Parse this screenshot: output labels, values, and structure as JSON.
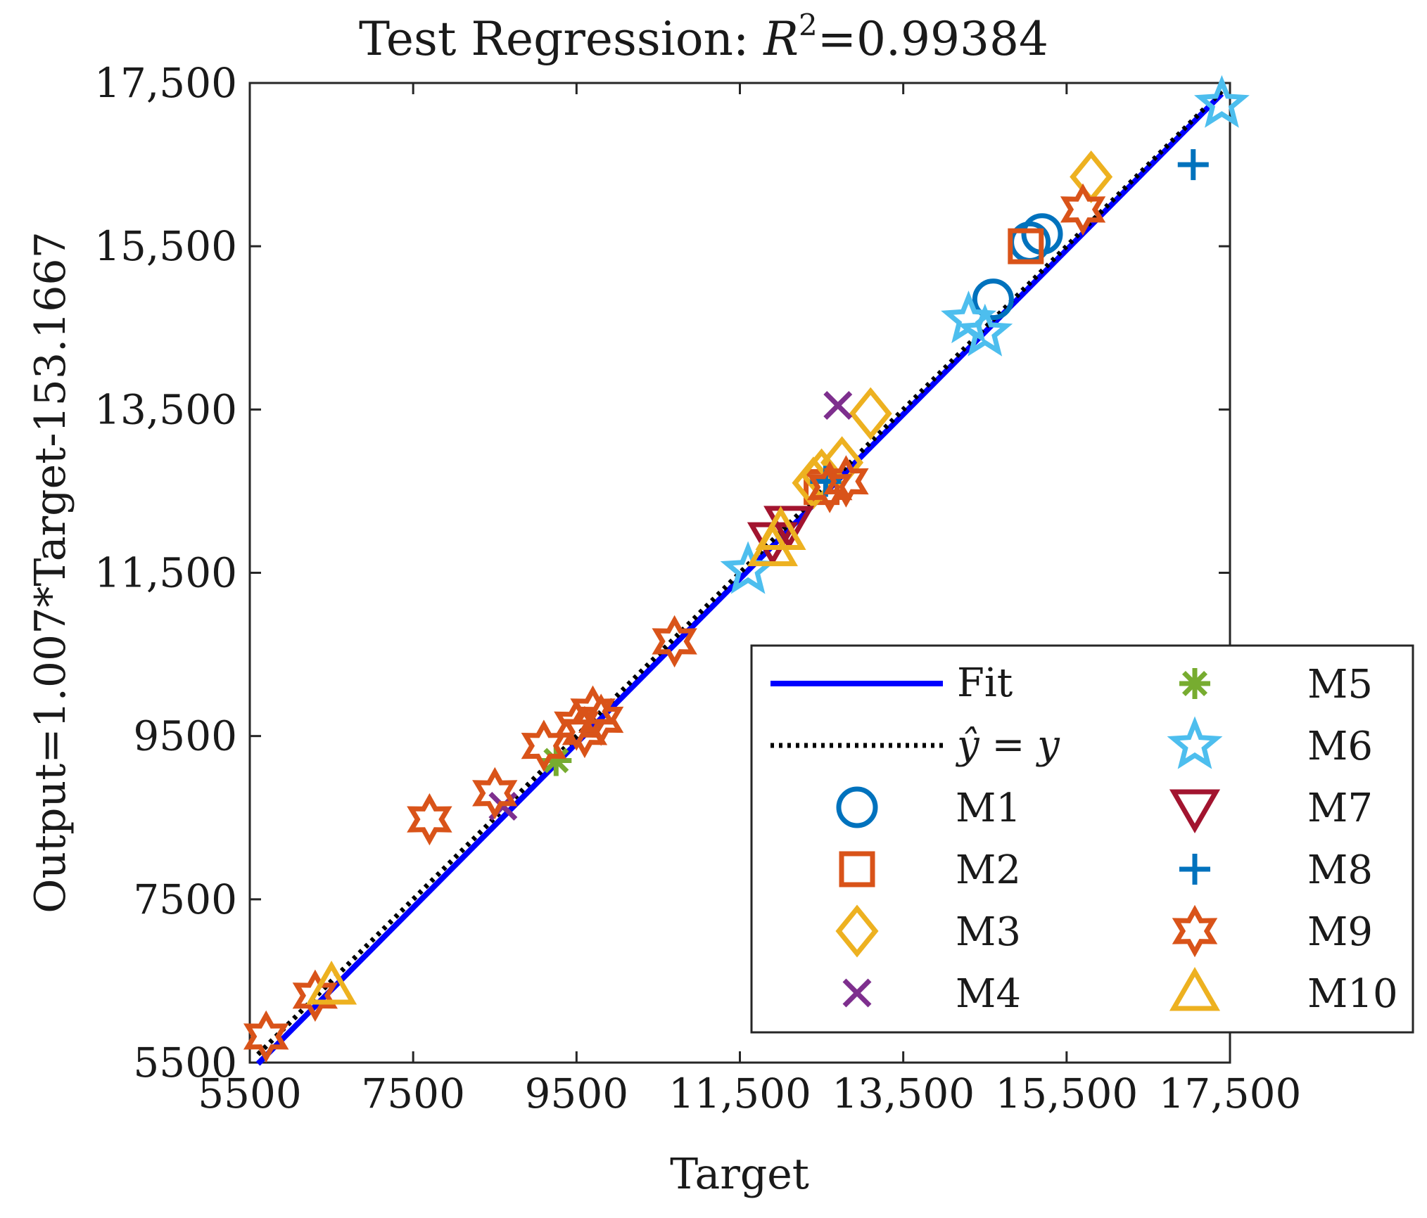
{
  "chart_data": {
    "type": "scatter",
    "title": "Test Regression:",
    "title_r2_symbol": "R",
    "title_r2_exp": "2",
    "title_r2_value": "=0.99384",
    "xlabel": "Target",
    "ylabel": "Output=1.007*Target-153.1667",
    "xlim": [
      5500,
      17500
    ],
    "ylim": [
      5500,
      17500
    ],
    "xticks": [
      5500,
      7500,
      9500,
      11500,
      13500,
      15500,
      17500
    ],
    "yticks": [
      5500,
      7500,
      9500,
      11500,
      13500,
      15500,
      17500
    ],
    "xtick_labels": [
      "5500",
      "7500",
      "9500",
      "11,500",
      "13,500",
      "15,500",
      "17,500"
    ],
    "ytick_labels": [
      "5500",
      "7500",
      "9500",
      "11,500",
      "13,500",
      "15,500",
      "17,500"
    ],
    "fit": {
      "name": "Fit",
      "slope": 1.007,
      "intercept": -153.1667,
      "color": "#0000ff"
    },
    "identity": {
      "name": "ŷ = y",
      "color": "#000000"
    },
    "series": [
      {
        "name": "M1",
        "marker": "circle",
        "color": "#0072bd",
        "points": [
          [
            14600,
            14850
          ],
          [
            15050,
            15550
          ],
          [
            15200,
            15650
          ]
        ]
      },
      {
        "name": "M2",
        "marker": "square",
        "color": "#d95319",
        "points": [
          [
            15000,
            15500
          ],
          [
            12500,
            12550
          ]
        ]
      },
      {
        "name": "M3",
        "marker": "diamond",
        "color": "#edb120",
        "points": [
          [
            15800,
            16350
          ],
          [
            13100,
            13450
          ],
          [
            12750,
            12850
          ],
          [
            12400,
            12600
          ],
          [
            12500,
            12700
          ]
        ]
      },
      {
        "name": "M4",
        "marker": "x",
        "color": "#7e2f8e",
        "points": [
          [
            12700,
            13550
          ],
          [
            8600,
            8640
          ]
        ]
      },
      {
        "name": "M5",
        "marker": "asterisk",
        "color": "#77ac30",
        "points": [
          [
            9250,
            9200
          ]
        ]
      },
      {
        "name": "M6",
        "marker": "star5",
        "color": "#4dbeee",
        "points": [
          [
            17400,
            17240
          ],
          [
            14300,
            14600
          ],
          [
            14500,
            14440
          ],
          [
            11600,
            11530
          ]
        ]
      },
      {
        "name": "M7",
        "marker": "triangle-down",
        "color": "#a2142f",
        "points": [
          [
            12100,
            12100
          ],
          [
            11900,
            11900
          ]
        ]
      },
      {
        "name": "M8",
        "marker": "plus",
        "color": "#0072bd",
        "points": [
          [
            17050,
            16500
          ],
          [
            12550,
            12620
          ]
        ]
      },
      {
        "name": "M9",
        "marker": "star6",
        "color": "#d95319",
        "points": [
          [
            5700,
            5820
          ],
          [
            6300,
            6320
          ],
          [
            7700,
            8480
          ],
          [
            8500,
            8800
          ],
          [
            9100,
            9380
          ],
          [
            9500,
            9640
          ],
          [
            9700,
            9800
          ],
          [
            9600,
            9550
          ],
          [
            9800,
            9700
          ],
          [
            10700,
            10660
          ],
          [
            12600,
            12550
          ],
          [
            12800,
            12620
          ],
          [
            15700,
            15950
          ]
        ]
      },
      {
        "name": "M10",
        "marker": "triangle-up",
        "color": "#edb120",
        "points": [
          [
            6500,
            6430
          ],
          [
            11900,
            11800
          ],
          [
            12000,
            12000
          ]
        ]
      }
    ],
    "legend": {
      "location": "bottom-right",
      "columns": 2
    }
  }
}
